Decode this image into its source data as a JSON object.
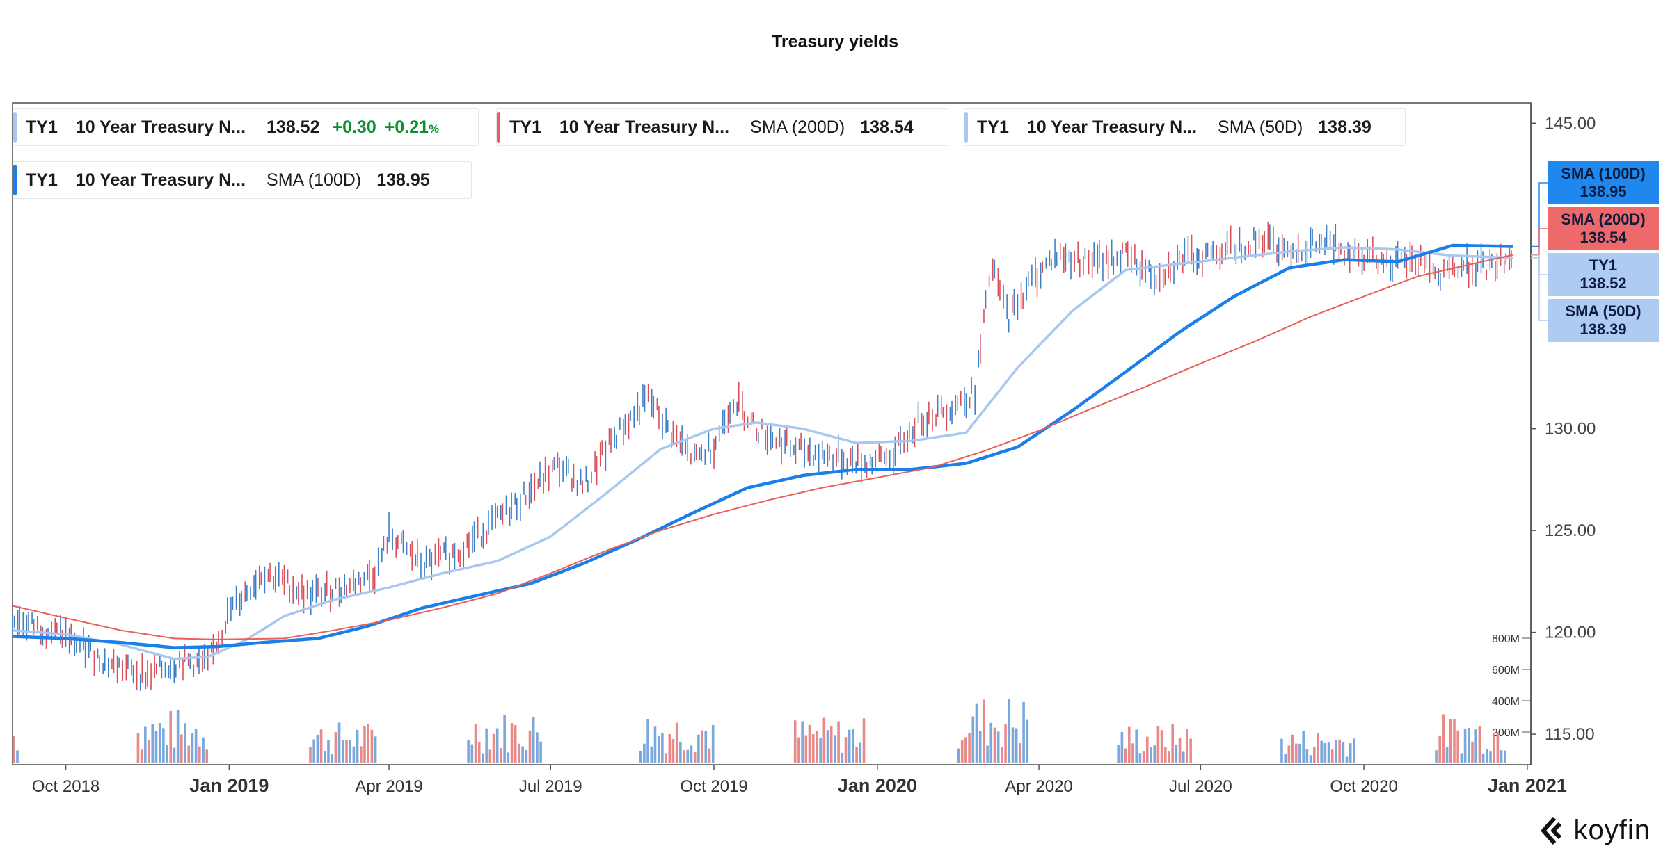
{
  "title": "Treasury yields",
  "legends": [
    {
      "symbol": "TY1",
      "name": "10 Year Treasury N...",
      "value": "138.52",
      "change": "+0.30",
      "pct": "+0.21",
      "pct_unit": "%",
      "color": "#a8c8f0"
    },
    {
      "symbol": "TY1",
      "name": "10 Year Treasury N...",
      "indicator": "SMA (200D)",
      "value": "138.54",
      "color": "#e8605a"
    },
    {
      "symbol": "TY1",
      "name": "10 Year Treasury N...",
      "indicator": "SMA (50D)",
      "value": "138.39",
      "color": "#a8c8f0"
    },
    {
      "symbol": "TY1",
      "name": "10 Year Treasury N...",
      "indicator": "SMA (100D)",
      "value": "138.95",
      "color": "#1a7fe8"
    }
  ],
  "tags": [
    {
      "label": "SMA (100D)",
      "value": "138.95",
      "color": "#1e88ef"
    },
    {
      "label": "SMA (200D)",
      "value": "138.54",
      "color": "#ee6a6a"
    },
    {
      "label": "TY1",
      "value": "138.52",
      "color": "#aecbf3"
    },
    {
      "label": "SMA (50D)",
      "value": "138.39",
      "color": "#aecbf3"
    }
  ],
  "logo": "koyfin",
  "chart_data": {
    "type": "line",
    "x_tick_labels": [
      {
        "date": "2018-10-01",
        "label": "Oct 2018",
        "major": false
      },
      {
        "date": "2019-01-01",
        "label": "Jan 2019",
        "major": true
      },
      {
        "date": "2019-04-01",
        "label": "Apr 2019",
        "major": false
      },
      {
        "date": "2019-07-01",
        "label": "Jul 2019",
        "major": false
      },
      {
        "date": "2019-10-01",
        "label": "Oct 2019",
        "major": false
      },
      {
        "date": "2020-01-01",
        "label": "Jan 2020",
        "major": true
      },
      {
        "date": "2020-04-01",
        "label": "Apr 2020",
        "major": false
      },
      {
        "date": "2020-07-01",
        "label": "Jul 2020",
        "major": false
      },
      {
        "date": "2020-10-01",
        "label": "Oct 2020",
        "major": false
      },
      {
        "date": "2021-01-01",
        "label": "Jan 2021",
        "major": true
      }
    ],
    "y_ticks": [
      115,
      120,
      125,
      130,
      145
    ],
    "y_tick_labels": [
      "115.00",
      "120.00",
      "125.00",
      "130.00",
      "145.00"
    ],
    "ylim": [
      113.5,
      146.0
    ],
    "volume_ticks": [
      200,
      400,
      600,
      800
    ],
    "volume_tick_labels": [
      "200M",
      "400M",
      "600M",
      "800M"
    ],
    "series": [
      {
        "name": "TY1",
        "color": "#6a9fd8",
        "points": [
          [
            "2018-09-01",
            120.7
          ],
          [
            "2018-10-01",
            119.8
          ],
          [
            "2018-10-25",
            118.5
          ],
          [
            "2018-11-15",
            117.9
          ],
          [
            "2018-12-05",
            118.6
          ],
          [
            "2018-12-20",
            118.4
          ],
          [
            "2019-01-01",
            121.0
          ],
          [
            "2019-01-20",
            123.0
          ],
          [
            "2019-02-15",
            121.8
          ],
          [
            "2019-03-10",
            122.3
          ],
          [
            "2019-03-25",
            123.0
          ],
          [
            "2019-04-01",
            124.8
          ],
          [
            "2019-04-20",
            123.3
          ],
          [
            "2019-05-10",
            124.0
          ],
          [
            "2019-06-01",
            125.5
          ],
          [
            "2019-06-20",
            127.0
          ],
          [
            "2019-07-05",
            128.2
          ],
          [
            "2019-07-20",
            127.2
          ],
          [
            "2019-08-05",
            129.5
          ],
          [
            "2019-08-25",
            131.5
          ],
          [
            "2019-09-05",
            130.0
          ],
          [
            "2019-09-20",
            128.5
          ],
          [
            "2019-10-01",
            129.2
          ],
          [
            "2019-10-12",
            131.5
          ],
          [
            "2019-10-25",
            130.0
          ],
          [
            "2019-11-15",
            129.0
          ],
          [
            "2019-12-05",
            128.7
          ],
          [
            "2019-12-25",
            128.3
          ],
          [
            "2020-01-10",
            128.7
          ],
          [
            "2020-01-25",
            130.5
          ],
          [
            "2020-02-10",
            131.0
          ],
          [
            "2020-02-25",
            131.8
          ],
          [
            "2020-03-05",
            138.0
          ],
          [
            "2020-03-15",
            135.5
          ],
          [
            "2020-03-25",
            137.0
          ],
          [
            "2020-04-10",
            138.5
          ],
          [
            "2020-05-01",
            138.2
          ],
          [
            "2020-05-20",
            138.5
          ],
          [
            "2020-06-05",
            137.5
          ],
          [
            "2020-06-20",
            138.3
          ],
          [
            "2020-07-15",
            138.8
          ],
          [
            "2020-08-05",
            139.3
          ],
          [
            "2020-08-20",
            138.8
          ],
          [
            "2020-09-10",
            139.1
          ],
          [
            "2020-09-30",
            138.6
          ],
          [
            "2020-10-20",
            138.1
          ],
          [
            "2020-11-05",
            138.3
          ],
          [
            "2020-11-12",
            137.3
          ],
          [
            "2020-11-25",
            138.0
          ],
          [
            "2020-12-10",
            137.9
          ],
          [
            "2020-12-24",
            138.52
          ]
        ]
      },
      {
        "name": "SMA (50D)",
        "color": "#a8c8f0",
        "points": [
          [
            "2018-09-01",
            120.1
          ],
          [
            "2018-10-01",
            119.9
          ],
          [
            "2018-11-01",
            119.4
          ],
          [
            "2018-12-01",
            118.7
          ],
          [
            "2018-12-20",
            118.8
          ],
          [
            "2019-01-10",
            119.6
          ],
          [
            "2019-02-01",
            120.8
          ],
          [
            "2019-03-01",
            121.6
          ],
          [
            "2019-04-01",
            122.2
          ],
          [
            "2019-05-01",
            122.9
          ],
          [
            "2019-06-01",
            123.5
          ],
          [
            "2019-07-01",
            124.7
          ],
          [
            "2019-08-01",
            126.8
          ],
          [
            "2019-09-01",
            129.0
          ],
          [
            "2019-10-01",
            130.0
          ],
          [
            "2019-10-25",
            130.3
          ],
          [
            "2019-11-20",
            130.0
          ],
          [
            "2019-12-20",
            129.3
          ],
          [
            "2020-01-20",
            129.4
          ],
          [
            "2020-02-20",
            129.8
          ],
          [
            "2020-03-20",
            133.0
          ],
          [
            "2020-04-20",
            135.8
          ],
          [
            "2020-05-20",
            137.8
          ],
          [
            "2020-06-20",
            138.1
          ],
          [
            "2020-07-20",
            138.4
          ],
          [
            "2020-08-20",
            138.7
          ],
          [
            "2020-09-20",
            138.9
          ],
          [
            "2020-10-20",
            138.8
          ],
          [
            "2020-11-20",
            138.5
          ],
          [
            "2020-12-24",
            138.39
          ]
        ]
      },
      {
        "name": "SMA (100D)",
        "color": "#1a7fe8",
        "points": [
          [
            "2018-09-01",
            119.8
          ],
          [
            "2018-10-01",
            119.7
          ],
          [
            "2018-11-01",
            119.5
          ],
          [
            "2018-12-01",
            119.25
          ],
          [
            "2018-12-25",
            119.3
          ],
          [
            "2019-01-20",
            119.5
          ],
          [
            "2019-02-20",
            119.7
          ],
          [
            "2019-03-20",
            120.3
          ],
          [
            "2019-04-20",
            121.2
          ],
          [
            "2019-05-20",
            121.8
          ],
          [
            "2019-06-20",
            122.4
          ],
          [
            "2019-07-20",
            123.4
          ],
          [
            "2019-08-20",
            124.6
          ],
          [
            "2019-09-20",
            125.9
          ],
          [
            "2019-10-20",
            127.1
          ],
          [
            "2019-11-20",
            127.7
          ],
          [
            "2019-12-20",
            128.0
          ],
          [
            "2020-01-20",
            128.0
          ],
          [
            "2020-02-20",
            128.3
          ],
          [
            "2020-03-20",
            129.1
          ],
          [
            "2020-04-20",
            130.9
          ],
          [
            "2020-05-20",
            132.8
          ],
          [
            "2020-06-20",
            134.8
          ],
          [
            "2020-07-20",
            136.5
          ],
          [
            "2020-08-20",
            137.9
          ],
          [
            "2020-09-20",
            138.3
          ],
          [
            "2020-10-20",
            138.2
          ],
          [
            "2020-11-20",
            139.0
          ],
          [
            "2020-12-24",
            138.95
          ]
        ]
      },
      {
        "name": "SMA (200D)",
        "color": "#e8605a",
        "points": [
          [
            "2018-09-01",
            121.3
          ],
          [
            "2018-10-01",
            120.7
          ],
          [
            "2018-11-01",
            120.1
          ],
          [
            "2018-12-01",
            119.7
          ],
          [
            "2018-12-25",
            119.65
          ],
          [
            "2019-02-01",
            119.7
          ],
          [
            "2019-03-01",
            120.1
          ],
          [
            "2019-04-01",
            120.6
          ],
          [
            "2019-05-01",
            121.2
          ],
          [
            "2019-06-01",
            121.9
          ],
          [
            "2019-07-01",
            122.9
          ],
          [
            "2019-08-01",
            124.0
          ],
          [
            "2019-09-01",
            125.0
          ],
          [
            "2019-10-01",
            125.8
          ],
          [
            "2019-11-01",
            126.5
          ],
          [
            "2019-12-01",
            127.1
          ],
          [
            "2020-01-01",
            127.6
          ],
          [
            "2020-02-01",
            128.1
          ],
          [
            "2020-03-01",
            128.9
          ],
          [
            "2020-04-01",
            129.9
          ],
          [
            "2020-05-01",
            131.0
          ],
          [
            "2020-06-01",
            132.1
          ],
          [
            "2020-07-01",
            133.2
          ],
          [
            "2020-08-01",
            134.3
          ],
          [
            "2020-09-01",
            135.5
          ],
          [
            "2020-10-01",
            136.5
          ],
          [
            "2020-11-01",
            137.5
          ],
          [
            "2020-12-24",
            138.54
          ]
        ]
      }
    ],
    "volume_bursts": [
      {
        "start": "2018-09-01",
        "end": "2018-09-05",
        "level": 220
      },
      {
        "start": "2018-11-10",
        "end": "2018-12-20",
        "level": 260
      },
      {
        "start": "2019-02-15",
        "end": "2019-03-25",
        "level": 200
      },
      {
        "start": "2019-05-15",
        "end": "2019-06-25",
        "level": 250
      },
      {
        "start": "2019-08-20",
        "end": "2019-09-30",
        "level": 250
      },
      {
        "start": "2019-11-15",
        "end": "2019-12-25",
        "level": 220
      },
      {
        "start": "2020-02-15",
        "end": "2020-03-25",
        "level": 330
      },
      {
        "start": "2020-05-15",
        "end": "2020-06-25",
        "level": 190
      },
      {
        "start": "2020-08-15",
        "end": "2020-09-25",
        "level": 170
      },
      {
        "start": "2020-11-10",
        "end": "2020-12-20",
        "level": 240
      }
    ]
  }
}
